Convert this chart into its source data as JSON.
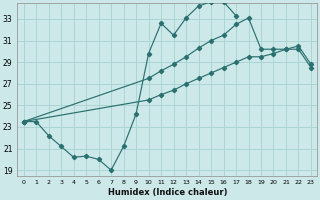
{
  "xlabel": "Humidex (Indice chaleur)",
  "bg_color": "#cce8e8",
  "grid_color": "#aad4d4",
  "line_color": "#2a7070",
  "xlim": [
    -0.5,
    23.5
  ],
  "ylim": [
    18.5,
    34.5
  ],
  "xticks": [
    0,
    1,
    2,
    3,
    4,
    5,
    6,
    7,
    8,
    9,
    10,
    11,
    12,
    13,
    14,
    15,
    16,
    17,
    18,
    19,
    20,
    21,
    22,
    23
  ],
  "yticks": [
    19,
    21,
    23,
    25,
    27,
    29,
    31,
    33
  ],
  "series1_x": [
    0,
    1,
    2,
    3,
    4,
    5,
    6,
    7,
    8,
    9,
    10,
    11,
    12,
    13,
    14,
    15,
    16,
    17
  ],
  "series1_y": [
    23.5,
    23.5,
    22.2,
    21.2,
    20.2,
    20.3,
    20.0,
    19.0,
    21.2,
    24.2,
    29.8,
    32.6,
    31.5,
    33.1,
    34.2,
    34.6,
    34.6,
    33.3
  ],
  "series2_x": [
    0,
    10,
    11,
    12,
    13,
    14,
    15,
    16,
    17,
    18,
    19,
    20,
    21,
    22,
    23
  ],
  "series2_y": [
    23.5,
    27.5,
    28.2,
    28.8,
    29.5,
    30.3,
    31.0,
    31.5,
    32.5,
    33.1,
    30.2,
    30.2,
    30.2,
    30.2,
    28.5
  ],
  "series3_x": [
    0,
    10,
    11,
    12,
    13,
    14,
    15,
    16,
    17,
    18,
    19,
    20,
    21,
    22,
    23
  ],
  "series3_y": [
    23.5,
    25.5,
    26.0,
    26.4,
    27.0,
    27.5,
    28.0,
    28.5,
    29.0,
    29.5,
    29.5,
    29.8,
    30.2,
    30.5,
    28.8
  ]
}
